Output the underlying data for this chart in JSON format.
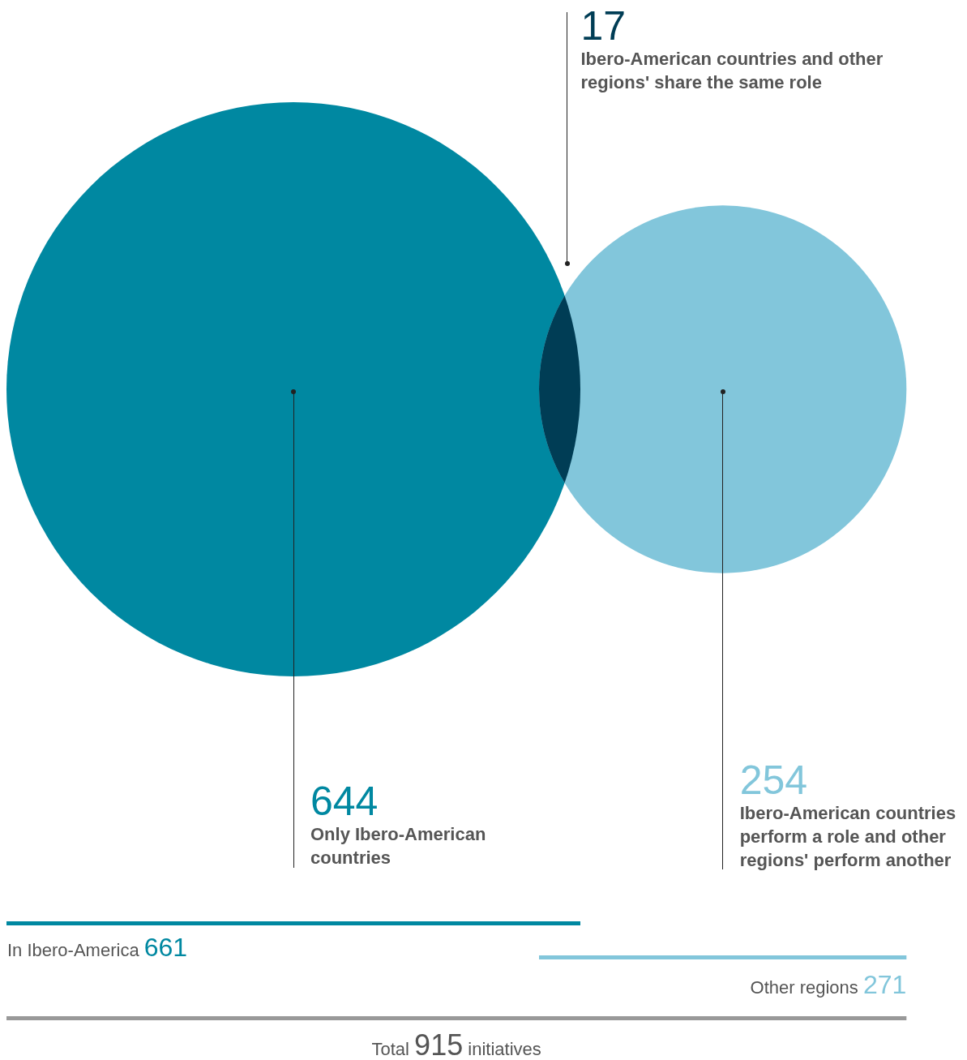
{
  "chart_data": {
    "type": "other",
    "categories": [
      "Only Ibero-American countries",
      "Ibero-American countries and other regions' share the same role",
      "Ibero-American countries perform a role and other regions' perform another"
    ],
    "values": [
      644,
      17,
      254
    ],
    "data_labels": true,
    "colors": [
      "#0088a1",
      "#003d55",
      "#82c6db"
    ],
    "annotations": [
      "In Ibero-America 661",
      "Other regions 271",
      "Total 915 initiatives"
    ]
  }
}
